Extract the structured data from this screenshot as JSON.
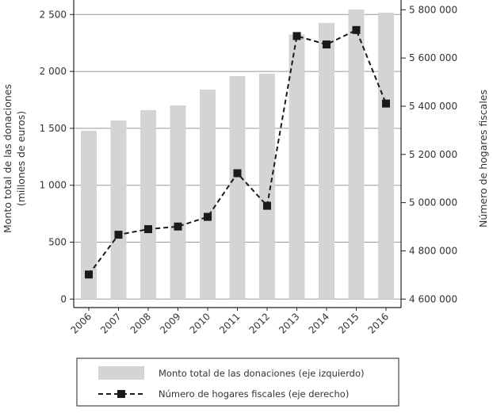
{
  "chart_data": {
    "type": "bar+line",
    "categories": [
      "2006",
      "2007",
      "2008",
      "2009",
      "2010",
      "2011",
      "2012",
      "2013",
      "2014",
      "2015",
      "2016"
    ],
    "series": [
      {
        "name": "Monto total de las donaciones (eje izquierdo)",
        "type": "bar",
        "axis": "left",
        "color": "#d4d4d4",
        "values": [
          1479,
          1569,
          1660,
          1702,
          1841,
          1959,
          1980,
          2324,
          2426,
          2544,
          2516
        ]
      },
      {
        "name": "Número de hogares fiscales (eje derecho)",
        "type": "line",
        "axis": "right",
        "color": "#1a1a1a",
        "style": "dashed",
        "marker": "square",
        "values": [
          4702000,
          4867000,
          4890000,
          4901000,
          4941000,
          5122000,
          4987000,
          5691000,
          5656000,
          5716000,
          5411000
        ]
      }
    ],
    "ylabel_left": [
      "Monto total de las donaciones",
      "(millones de euros)"
    ],
    "ylabel_right": "Número de hogares fiscales",
    "ylim_left": [
      0,
      2500
    ],
    "ylim_right": [
      4600000,
      5800000
    ],
    "yticks_left": [
      "0",
      "500",
      "1 000",
      "1 500",
      "2 000",
      "2 500"
    ],
    "yticks_right": [
      "4 600 000",
      "4 800 000",
      "5 000 000",
      "5 200 000",
      "5 400 000",
      "5 600 000",
      "5 800 000"
    ],
    "grid": true,
    "legend_placement": "bottom"
  }
}
